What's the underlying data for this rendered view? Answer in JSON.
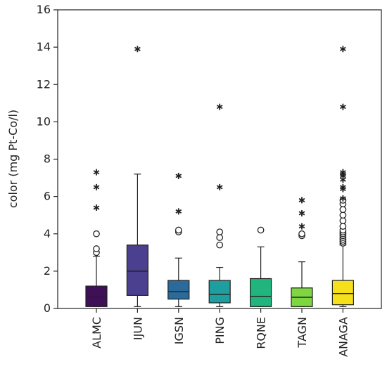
{
  "chart_data": {
    "type": "box",
    "ylabel": "color (mg Pt-Co/l)",
    "ylim": [
      0,
      16
    ],
    "yticks": [
      0,
      2,
      4,
      6,
      8,
      10,
      12,
      14,
      16
    ],
    "grid": false,
    "legend": "none",
    "groups": [
      {
        "name": "ALMC",
        "color": "#3f0f57",
        "min": 0.1,
        "q1": 0.1,
        "median": 0.6,
        "q3": 1.2,
        "max": 2.8,
        "outliers_circle": [
          3.0,
          3.2,
          4.0
        ],
        "outliers_star": [
          5.4,
          6.5,
          7.3
        ]
      },
      {
        "name": "IJUN",
        "color": "#4b3f90",
        "min": 0.1,
        "q1": 0.7,
        "median": 2.0,
        "q3": 3.4,
        "max": 7.2,
        "outliers_circle": [],
        "outliers_star": [
          13.9
        ]
      },
      {
        "name": "IGSN",
        "color": "#2a6b9b",
        "min": 0.1,
        "q1": 0.5,
        "median": 0.9,
        "q3": 1.5,
        "max": 2.7,
        "outliers_circle": [
          4.1,
          4.2
        ],
        "outliers_star": [
          5.2,
          7.1
        ]
      },
      {
        "name": "PING",
        "color": "#1f9e9f",
        "min": 0.1,
        "q1": 0.3,
        "median": 0.75,
        "q3": 1.5,
        "max": 2.2,
        "outliers_circle": [
          3.4,
          3.8,
          4.1
        ],
        "outliers_star": [
          6.5,
          10.8
        ]
      },
      {
        "name": "RQNE",
        "color": "#22b47d",
        "min": 0.1,
        "q1": 0.1,
        "median": 0.65,
        "q3": 1.6,
        "max": 3.3,
        "outliers_circle": [
          4.2
        ],
        "outliers_star": []
      },
      {
        "name": "TAGN",
        "color": "#7ed640",
        "min": 0.1,
        "q1": 0.1,
        "median": 0.6,
        "q3": 1.1,
        "max": 2.5,
        "outliers_circle": [
          3.9,
          4.0
        ],
        "outliers_star": [
          4.4,
          5.1,
          5.8
        ]
      },
      {
        "name": "ANAGA",
        "color": "#f6e01b",
        "min": 0.1,
        "q1": 0.2,
        "median": 0.8,
        "q3": 1.5,
        "max": 3.4,
        "outliers_circle": [
          3.5,
          3.6,
          3.7,
          3.8,
          3.9,
          4.0,
          4.1,
          4.2,
          4.4,
          4.7,
          5.0,
          5.3,
          5.6,
          5.8
        ],
        "outliers_star": [
          5.9,
          6.4,
          6.5,
          6.9,
          7.1,
          7.2,
          7.3,
          10.8,
          13.9
        ]
      }
    ]
  }
}
